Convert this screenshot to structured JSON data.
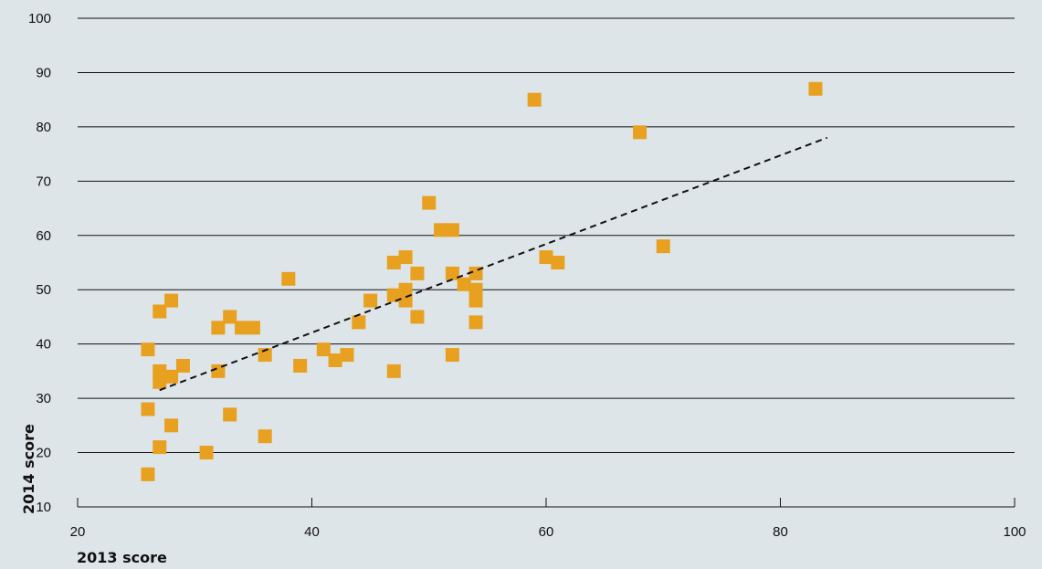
{
  "chart_data": {
    "type": "scatter",
    "title": "",
    "xlabel": "2013 score",
    "ylabel": "2014 score",
    "xlim": [
      20,
      100
    ],
    "ylim": [
      10,
      100
    ],
    "xticks": [
      20,
      40,
      60,
      80,
      100
    ],
    "yticks": [
      10,
      20,
      30,
      40,
      50,
      60,
      70,
      80,
      90,
      100
    ],
    "grid": "horizontal",
    "colors": {
      "background": "#dde5e9",
      "point": "#e8a020",
      "gridline": "#111111",
      "trendline": "#111111"
    },
    "points": [
      {
        "x": 26,
        "y": 16
      },
      {
        "x": 26,
        "y": 28
      },
      {
        "x": 26,
        "y": 39
      },
      {
        "x": 27,
        "y": 21
      },
      {
        "x": 27,
        "y": 33
      },
      {
        "x": 27,
        "y": 35
      },
      {
        "x": 27,
        "y": 46
      },
      {
        "x": 28,
        "y": 25
      },
      {
        "x": 28,
        "y": 34
      },
      {
        "x": 28,
        "y": 48
      },
      {
        "x": 29,
        "y": 36
      },
      {
        "x": 31,
        "y": 20
      },
      {
        "x": 32,
        "y": 35
      },
      {
        "x": 32,
        "y": 43
      },
      {
        "x": 33,
        "y": 27
      },
      {
        "x": 33,
        "y": 45
      },
      {
        "x": 34,
        "y": 43
      },
      {
        "x": 35,
        "y": 43
      },
      {
        "x": 36,
        "y": 23
      },
      {
        "x": 36,
        "y": 38
      },
      {
        "x": 38,
        "y": 52
      },
      {
        "x": 39,
        "y": 36
      },
      {
        "x": 41,
        "y": 39
      },
      {
        "x": 42,
        "y": 37
      },
      {
        "x": 43,
        "y": 38
      },
      {
        "x": 44,
        "y": 44
      },
      {
        "x": 45,
        "y": 48
      },
      {
        "x": 47,
        "y": 35
      },
      {
        "x": 47,
        "y": 49
      },
      {
        "x": 47,
        "y": 55
      },
      {
        "x": 48,
        "y": 48
      },
      {
        "x": 48,
        "y": 50
      },
      {
        "x": 48,
        "y": 56
      },
      {
        "x": 49,
        "y": 45
      },
      {
        "x": 49,
        "y": 53
      },
      {
        "x": 50,
        "y": 66
      },
      {
        "x": 51,
        "y": 61
      },
      {
        "x": 52,
        "y": 61
      },
      {
        "x": 52,
        "y": 38
      },
      {
        "x": 52,
        "y": 53
      },
      {
        "x": 53,
        "y": 51
      },
      {
        "x": 54,
        "y": 44
      },
      {
        "x": 54,
        "y": 48
      },
      {
        "x": 54,
        "y": 50
      },
      {
        "x": 54,
        "y": 53
      },
      {
        "x": 59,
        "y": 85
      },
      {
        "x": 60,
        "y": 56
      },
      {
        "x": 61,
        "y": 55
      },
      {
        "x": 68,
        "y": 79
      },
      {
        "x": 70,
        "y": 58
      },
      {
        "x": 83,
        "y": 87
      }
    ],
    "trendline": {
      "style": "dashed",
      "start": {
        "x": 27,
        "y": 31.5
      },
      "end": {
        "x": 84,
        "y": 78
      }
    }
  }
}
